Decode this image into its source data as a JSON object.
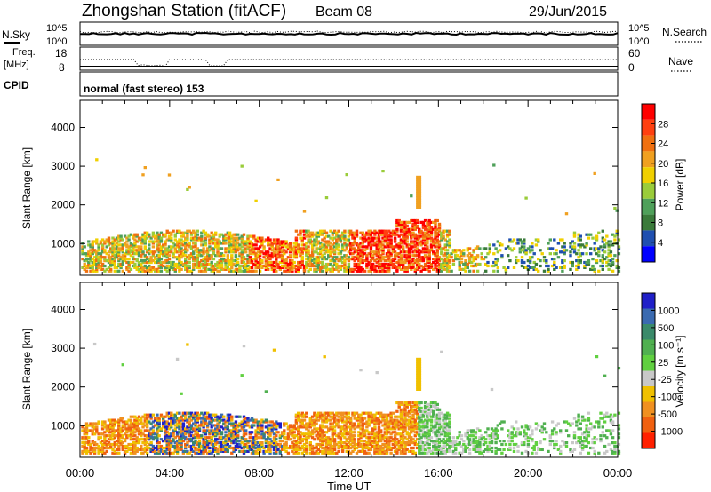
{
  "header": {
    "station": "Zhongshan Station (fitACF)",
    "beam": "Beam 08",
    "date": "29/Jun/2015"
  },
  "top_panels": {
    "nsky_label": "N.Sky",
    "nsky_ticks": [
      "10^5",
      "10^0"
    ],
    "nsearch_label": "N.Search",
    "nsearch_ticks": [
      "10^5",
      "10^0"
    ],
    "freq_label_1": "Freq.",
    "freq_label_2": "[MHz]",
    "freq_ticks": [
      "18",
      "8"
    ],
    "nave_label": "Nave",
    "nave_ticks": [
      "60",
      "0"
    ],
    "cpid_label": "CPID",
    "cpid_value": "normal (fast stereo) 153"
  },
  "colors": {
    "power": [
      "#0000ff",
      "#1f4fb0",
      "#3a7a3a",
      "#4fa05a",
      "#9acc3a",
      "#f0d000",
      "#f0a020",
      "#f07010",
      "#ff4010",
      "#ff0000"
    ],
    "velocity": [
      "#2020c8",
      "#3a6ab0",
      "#3a8a6a",
      "#50b050",
      "#60d040",
      "#c8c8c8",
      "#f0c000",
      "#f09020",
      "#f06010",
      "#ff2000"
    ]
  },
  "chart_data": [
    {
      "type": "heatmap",
      "name": "power-panel",
      "ylabel": "Slant Range [km]",
      "xlabel": "Time UT",
      "x_ticks": [
        "00:00",
        "04:00",
        "08:00",
        "12:00",
        "16:00",
        "20:00",
        "00:00"
      ],
      "y_ticks": [
        "1000",
        "2000",
        "3000",
        "4000"
      ],
      "ylim": [
        180,
        4700
      ],
      "xlim": [
        0,
        24
      ],
      "colorbar_label": "Power [dB]",
      "colorbar_ticks": [
        "4",
        "8",
        "12",
        "16",
        "20",
        "24",
        "28"
      ],
      "colorbar_range": [
        0,
        30
      ]
    },
    {
      "type": "heatmap",
      "name": "velocity-panel",
      "ylabel": "Slant Range [km]",
      "xlabel": "Time UT",
      "x_ticks": [
        "00:00",
        "04:00",
        "08:00",
        "12:00",
        "16:00",
        "20:00",
        "00:00"
      ],
      "y_ticks": [
        "1000",
        "2000",
        "3000",
        "4000"
      ],
      "ylim": [
        180,
        4700
      ],
      "xlim": [
        0,
        24
      ],
      "colorbar_label": "Velocity [m s⁻¹]",
      "colorbar_ticks": [
        "1000",
        "500",
        "100",
        "25",
        "-25",
        "-100",
        "-500",
        "-1000"
      ]
    }
  ]
}
